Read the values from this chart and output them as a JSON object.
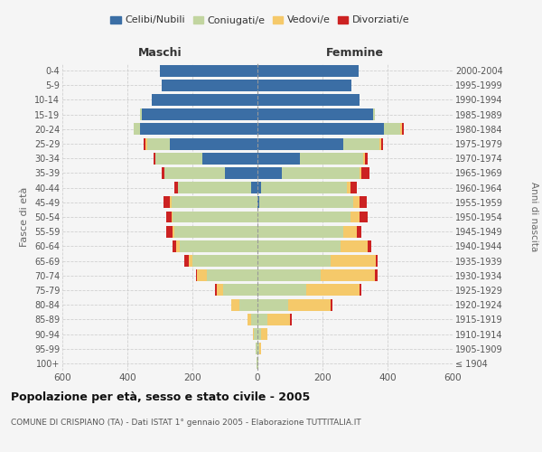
{
  "age_groups": [
    "100+",
    "95-99",
    "90-94",
    "85-89",
    "80-84",
    "75-79",
    "70-74",
    "65-69",
    "60-64",
    "55-59",
    "50-54",
    "45-49",
    "40-44",
    "35-39",
    "30-34",
    "25-29",
    "20-24",
    "15-19",
    "10-14",
    "5-9",
    "0-4"
  ],
  "birth_years": [
    "≤ 1904",
    "1905-1909",
    "1910-1914",
    "1915-1919",
    "1920-1924",
    "1925-1929",
    "1930-1934",
    "1935-1939",
    "1940-1944",
    "1945-1949",
    "1950-1954",
    "1955-1959",
    "1960-1964",
    "1965-1969",
    "1970-1974",
    "1975-1979",
    "1980-1984",
    "1985-1989",
    "1990-1994",
    "1995-1999",
    "2000-2004"
  ],
  "males": {
    "celibe": [
      0,
      0,
      0,
      0,
      0,
      0,
      0,
      0,
      0,
      0,
      0,
      0,
      20,
      100,
      170,
      270,
      360,
      355,
      325,
      295,
      300
    ],
    "coniugato": [
      2,
      5,
      10,
      20,
      55,
      105,
      155,
      200,
      240,
      255,
      260,
      265,
      225,
      185,
      145,
      70,
      20,
      5,
      0,
      0,
      0
    ],
    "vedovo": [
      0,
      0,
      5,
      10,
      25,
      20,
      30,
      10,
      10,
      5,
      5,
      5,
      0,
      0,
      0,
      5,
      0,
      0,
      0,
      0,
      0
    ],
    "divorziato": [
      0,
      0,
      0,
      0,
      0,
      5,
      5,
      15,
      10,
      20,
      15,
      20,
      10,
      10,
      5,
      5,
      0,
      0,
      0,
      0,
      0
    ]
  },
  "females": {
    "nubile": [
      0,
      0,
      0,
      0,
      0,
      0,
      0,
      0,
      0,
      0,
      0,
      5,
      10,
      75,
      130,
      265,
      390,
      355,
      315,
      290,
      310
    ],
    "coniugata": [
      2,
      5,
      10,
      30,
      95,
      150,
      195,
      225,
      255,
      265,
      285,
      290,
      265,
      240,
      195,
      110,
      50,
      5,
      0,
      0,
      0
    ],
    "vedova": [
      2,
      5,
      20,
      70,
      130,
      165,
      165,
      140,
      85,
      40,
      30,
      20,
      10,
      5,
      5,
      5,
      5,
      0,
      0,
      0,
      0
    ],
    "divorziata": [
      0,
      0,
      0,
      5,
      5,
      5,
      10,
      5,
      10,
      15,
      25,
      20,
      20,
      25,
      10,
      5,
      5,
      0,
      0,
      0,
      0
    ]
  },
  "colors": {
    "celibe": "#3b6ea5",
    "coniugato": "#c2d5a0",
    "vedovo": "#f5c96a",
    "divorziato": "#cc2222"
  },
  "title": "Popolazione per età, sesso e stato civile - 2005",
  "subtitle": "COMUNE DI CRISPIANO (TA) - Dati ISTAT 1° gennaio 2005 - Elaborazione TUTTITALIA.IT",
  "xlabel_left": "Maschi",
  "xlabel_right": "Femmine",
  "ylabel_left": "Fasce di età",
  "ylabel_right": "Anni di nascita",
  "xlim": 600,
  "bg_color": "#f5f5f5",
  "grid_color": "#cccccc"
}
